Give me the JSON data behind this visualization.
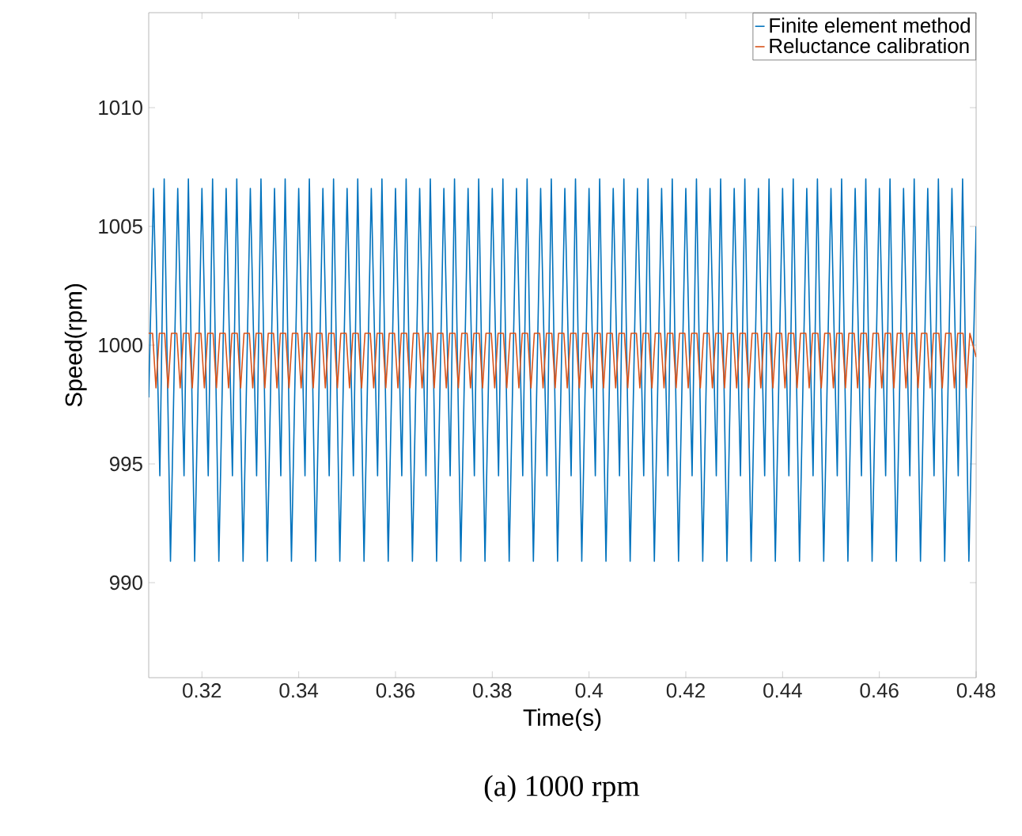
{
  "chart_data": {
    "type": "line",
    "xlabel": "Time(s)",
    "ylabel": "Speed(rpm)",
    "annotations": [
      "(a)  1000  rpm"
    ],
    "xlim": [
      0.309,
      0.48
    ],
    "ylim": [
      986,
      1014
    ],
    "xticks": [
      0.32,
      0.34,
      0.36,
      0.38,
      0.4,
      0.42,
      0.44,
      0.46,
      0.48
    ],
    "yticks": [
      990,
      995,
      1000,
      1005,
      1010
    ],
    "grid": false,
    "legend": "top right",
    "marker": "none",
    "line_style": "solid",
    "series": [
      {
        "name": "Finite element method",
        "color": "#0072bd",
        "x": [
          0.309,
          0.31,
          0.3113,
          0.3122,
          0.3135,
          0.315,
          0.3163,
          0.3172,
          0.3185,
          0.32,
          0.3213,
          0.3222,
          0.3235,
          0.325,
          0.3263,
          0.3272,
          0.3285,
          0.33,
          0.3313,
          0.3322,
          0.3335,
          0.335,
          0.3363,
          0.3372,
          0.3385,
          0.34,
          0.3413,
          0.3422,
          0.3435,
          0.345,
          0.3463,
          0.3472,
          0.3485,
          0.35,
          0.3513,
          0.3522,
          0.3535,
          0.355,
          0.3563,
          0.3572,
          0.3585,
          0.36,
          0.3613,
          0.3622,
          0.3635,
          0.365,
          0.3663,
          0.3672,
          0.3685,
          0.37,
          0.3713,
          0.3722,
          0.3735,
          0.375,
          0.3763,
          0.3772,
          0.3785,
          0.38,
          0.3813,
          0.3822,
          0.3835,
          0.385,
          0.3863,
          0.3872,
          0.3885,
          0.39,
          0.3913,
          0.3922,
          0.3935,
          0.395,
          0.3963,
          0.3972,
          0.3985,
          0.4,
          0.4013,
          0.4022,
          0.4035,
          0.405,
          0.4063,
          0.4072,
          0.4085,
          0.41,
          0.4113,
          0.4122,
          0.4135,
          0.415,
          0.4163,
          0.4172,
          0.4185,
          0.42,
          0.4213,
          0.4222,
          0.4235,
          0.425,
          0.4263,
          0.4272,
          0.4285,
          0.43,
          0.4313,
          0.4322,
          0.4335,
          0.435,
          0.4363,
          0.4372,
          0.4385,
          0.44,
          0.4413,
          0.4422,
          0.4435,
          0.445,
          0.4463,
          0.4472,
          0.4485,
          0.45,
          0.4513,
          0.4522,
          0.4535,
          0.455,
          0.4563,
          0.4572,
          0.4585,
          0.46,
          0.4613,
          0.4622,
          0.4635,
          0.465,
          0.4663,
          0.4672,
          0.4685,
          0.47,
          0.4713,
          0.4722,
          0.4735,
          0.475,
          0.4763,
          0.4772,
          0.4785,
          0.48
        ],
        "values": [
          997.8,
          1006.6,
          994.5,
          1007.0,
          990.9,
          1006.6,
          994.5,
          1007.0,
          990.9,
          1006.6,
          994.5,
          1007.0,
          990.9,
          1006.6,
          994.5,
          1007.0,
          990.9,
          1006.6,
          994.5,
          1007.0,
          990.9,
          1006.6,
          994.5,
          1007.0,
          990.9,
          1006.6,
          994.5,
          1007.0,
          990.9,
          1006.6,
          994.5,
          1007.0,
          990.9,
          1006.6,
          994.5,
          1007.0,
          990.9,
          1006.6,
          994.5,
          1007.0,
          990.9,
          1006.6,
          994.5,
          1007.0,
          990.9,
          1006.6,
          994.5,
          1007.0,
          990.9,
          1006.6,
          994.5,
          1007.0,
          990.9,
          1006.6,
          994.5,
          1007.0,
          990.9,
          1006.6,
          994.5,
          1007.0,
          990.9,
          1006.6,
          994.5,
          1007.0,
          990.9,
          1006.6,
          994.5,
          1007.0,
          990.9,
          1006.6,
          994.5,
          1007.0,
          990.9,
          1006.6,
          994.5,
          1007.0,
          990.9,
          1006.6,
          994.5,
          1007.0,
          990.9,
          1006.6,
          994.5,
          1007.0,
          990.9,
          1006.6,
          994.5,
          1007.0,
          990.9,
          1006.6,
          994.5,
          1007.0,
          990.9,
          1006.6,
          994.5,
          1007.0,
          990.9,
          1006.6,
          994.5,
          1007.0,
          990.9,
          1006.6,
          994.5,
          1007.0,
          990.9,
          1006.6,
          994.5,
          1007.0,
          990.9,
          1006.6,
          994.5,
          1007.0,
          990.9,
          1006.6,
          994.5,
          1007.0,
          990.9,
          1006.6,
          994.5,
          1007.0,
          990.9,
          1006.6,
          994.5,
          1007.0,
          990.9,
          1006.6,
          994.5,
          1007.0,
          990.9,
          1006.6,
          994.5,
          1007.0,
          990.9,
          1006.6,
          994.5,
          1007.0,
          990.9,
          1005.0
        ]
      },
      {
        "name": "Reluctance calibration",
        "color": "#d95319",
        "x": [
          0.309,
          0.3098,
          0.3105,
          0.3112,
          0.3123,
          0.313,
          0.3137,
          0.3148,
          0.3155,
          0.3162,
          0.3173,
          0.318,
          0.3187,
          0.3198,
          0.3205,
          0.3212,
          0.3223,
          0.323,
          0.3237,
          0.3248,
          0.3255,
          0.3262,
          0.3273,
          0.328,
          0.3287,
          0.3298,
          0.3305,
          0.3312,
          0.3323,
          0.333,
          0.3337,
          0.3348,
          0.3355,
          0.3362,
          0.3373,
          0.338,
          0.3387,
          0.3398,
          0.3405,
          0.3412,
          0.3423,
          0.343,
          0.3437,
          0.3448,
          0.3455,
          0.3462,
          0.3473,
          0.348,
          0.3487,
          0.3498,
          0.3505,
          0.3512,
          0.3523,
          0.353,
          0.3537,
          0.3548,
          0.3555,
          0.3562,
          0.3573,
          0.358,
          0.3587,
          0.3598,
          0.3605,
          0.3612,
          0.3623,
          0.363,
          0.3637,
          0.3648,
          0.3655,
          0.3662,
          0.3673,
          0.368,
          0.3687,
          0.3698,
          0.3705,
          0.3712,
          0.3723,
          0.373,
          0.3737,
          0.3748,
          0.3755,
          0.3762,
          0.3773,
          0.378,
          0.3787,
          0.3798,
          0.3805,
          0.3812,
          0.3823,
          0.383,
          0.3837,
          0.3848,
          0.3855,
          0.3862,
          0.3873,
          0.388,
          0.3887,
          0.3898,
          0.3905,
          0.3912,
          0.3923,
          0.393,
          0.3937,
          0.3948,
          0.3955,
          0.3962,
          0.3973,
          0.398,
          0.3987,
          0.3998,
          0.4005,
          0.4012,
          0.4023,
          0.403,
          0.4037,
          0.4048,
          0.4055,
          0.4062,
          0.4073,
          0.408,
          0.4087,
          0.4098,
          0.4105,
          0.4112,
          0.4123,
          0.413,
          0.4137,
          0.4148,
          0.4155,
          0.4162,
          0.4173,
          0.418,
          0.4187,
          0.4198,
          0.4205,
          0.4212,
          0.4223,
          0.423,
          0.4237,
          0.4248,
          0.4255,
          0.4262,
          0.4273,
          0.428,
          0.4287,
          0.4298,
          0.4305,
          0.4312,
          0.4323,
          0.433,
          0.4337,
          0.4348,
          0.4355,
          0.4362,
          0.4373,
          0.438,
          0.4387,
          0.4398,
          0.4405,
          0.4412,
          0.4423,
          0.443,
          0.4437,
          0.4448,
          0.4455,
          0.4462,
          0.4473,
          0.448,
          0.4487,
          0.4498,
          0.4505,
          0.4512,
          0.4523,
          0.453,
          0.4537,
          0.4548,
          0.4555,
          0.4562,
          0.4573,
          0.458,
          0.4587,
          0.4598,
          0.4605,
          0.4612,
          0.4623,
          0.463,
          0.4637,
          0.4648,
          0.4655,
          0.4662,
          0.4673,
          0.468,
          0.4687,
          0.4698,
          0.4705,
          0.4712,
          0.4723,
          0.473,
          0.4737,
          0.4748,
          0.4755,
          0.4762,
          0.4773,
          0.478,
          0.4787,
          0.48
        ],
        "values": [
          1000.5,
          1000.5,
          998.2,
          1000.5,
          1000.5,
          998.2,
          1000.5,
          1000.5,
          998.2,
          1000.5,
          1000.5,
          998.2,
          1000.5,
          1000.5,
          998.2,
          1000.5,
          1000.5,
          998.2,
          1000.5,
          1000.5,
          998.2,
          1000.5,
          1000.5,
          998.2,
          1000.5,
          1000.5,
          998.2,
          1000.5,
          1000.5,
          998.2,
          1000.5,
          1000.5,
          998.2,
          1000.5,
          1000.5,
          998.2,
          1000.5,
          1000.5,
          998.2,
          1000.5,
          1000.5,
          998.2,
          1000.5,
          1000.5,
          998.2,
          1000.5,
          1000.5,
          998.2,
          1000.5,
          1000.5,
          998.2,
          1000.5,
          1000.5,
          998.2,
          1000.5,
          1000.5,
          998.2,
          1000.5,
          1000.5,
          998.2,
          1000.5,
          1000.5,
          998.2,
          1000.5,
          1000.5,
          998.2,
          1000.5,
          1000.5,
          998.2,
          1000.5,
          1000.5,
          998.2,
          1000.5,
          1000.5,
          998.2,
          1000.5,
          1000.5,
          998.2,
          1000.5,
          1000.5,
          998.2,
          1000.5,
          1000.5,
          998.2,
          1000.5,
          1000.5,
          998.2,
          1000.5,
          1000.5,
          998.2,
          1000.5,
          1000.5,
          998.2,
          1000.5,
          1000.5,
          998.2,
          1000.5,
          1000.5,
          998.2,
          1000.5,
          1000.5,
          998.2,
          1000.5,
          1000.5,
          998.2,
          1000.5,
          1000.5,
          998.2,
          1000.5,
          1000.5,
          998.2,
          1000.5,
          1000.5,
          998.2,
          1000.5,
          1000.5,
          998.2,
          1000.5,
          1000.5,
          998.2,
          1000.5,
          1000.5,
          998.2,
          1000.5,
          1000.5,
          998.2,
          1000.5,
          1000.5,
          998.2,
          1000.5,
          1000.5,
          998.2,
          1000.5,
          1000.5,
          998.2,
          1000.5,
          1000.5,
          998.2,
          1000.5,
          1000.5,
          998.2,
          1000.5,
          1000.5,
          998.2,
          1000.5,
          1000.5,
          998.2,
          1000.5,
          1000.5,
          998.2,
          1000.5,
          1000.5,
          998.2,
          1000.5,
          1000.5,
          998.2,
          1000.5,
          1000.5,
          998.2,
          1000.5,
          1000.5,
          998.2,
          1000.5,
          1000.5,
          998.2,
          1000.5,
          1000.5,
          998.2,
          1000.5,
          1000.5,
          998.2,
          1000.5,
          1000.5,
          998.2,
          1000.5,
          1000.5,
          998.2,
          1000.5,
          1000.5,
          998.2,
          1000.5,
          1000.5,
          998.2,
          1000.5,
          1000.5,
          998.2,
          1000.5,
          1000.5,
          998.2,
          1000.5,
          1000.5,
          998.2,
          1000.5,
          1000.5,
          998.2,
          1000.5,
          1000.5,
          998.2,
          1000.5,
          1000.5,
          998.2,
          1000.5,
          1000.5,
          998.2,
          1000.5,
          999.5
        ]
      }
    ]
  }
}
